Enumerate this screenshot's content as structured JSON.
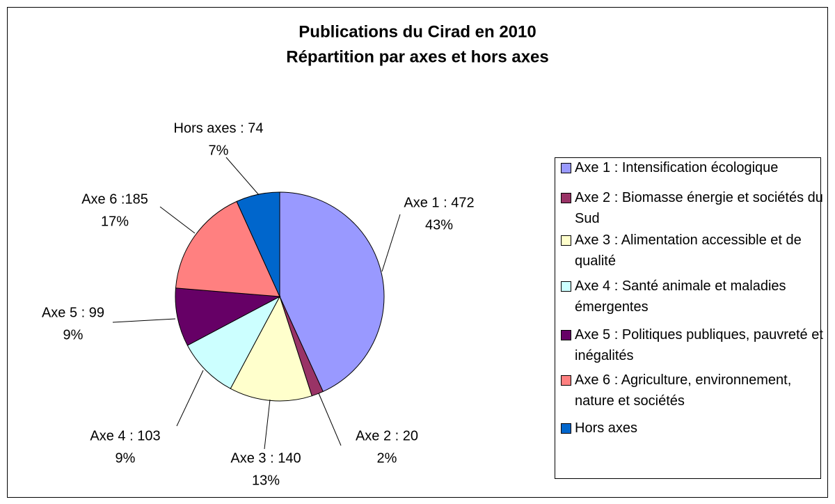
{
  "chart_data": {
    "type": "pie",
    "title": "Publications du Cirad en 2010",
    "subtitle": "Répartition par axes et hors axes",
    "labels": [
      "Axe 1 : Intensification écologique",
      "Axe 2 : Biomasse énergie et sociétés du Sud",
      "Axe 3 : Alimentation accessible et de qualité",
      "Axe 4 : Santé animale et maladies émergentes",
      "Axe 5 : Politiques publiques, pauvreté et inégalités",
      "Axe 6 : Agriculture, environnement, nature et sociétés",
      "Hors axes"
    ],
    "values": [
      472,
      20,
      140,
      103,
      99,
      185,
      74
    ],
    "value_labels": [
      "Axe 1 : 472",
      "Axe 2 : 20",
      "Axe 3 : 140",
      "Axe 4 : 103",
      "Axe 5 : 99",
      "Axe 6 :185",
      "Hors axes : 74"
    ],
    "percents": [
      43,
      2,
      13,
      9,
      9,
      17,
      7
    ],
    "percent_labels": [
      "43%",
      "2%",
      "13%",
      "9%",
      "9%",
      "17%",
      "7%"
    ],
    "colors": [
      "#9999ff",
      "#993366",
      "#ffffcc",
      "#ccffff",
      "#660066",
      "#ff8080",
      "#0066cc"
    ],
    "legend": "right"
  }
}
